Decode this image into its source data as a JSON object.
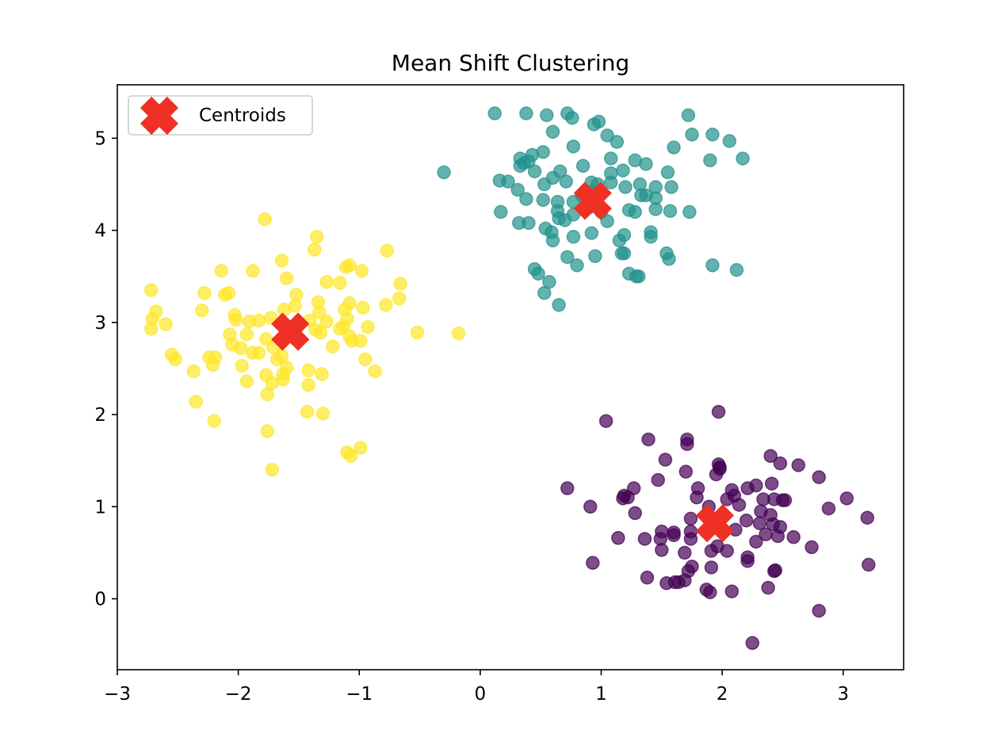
{
  "chart_data": {
    "type": "scatter",
    "title": "Mean Shift Clustering",
    "xlabel": "",
    "ylabel": "",
    "xlim": [
      -3.0,
      3.5
    ],
    "ylim": [
      -0.77,
      5.58
    ],
    "xticks": [
      -3,
      -2,
      -1,
      0,
      1,
      2,
      3
    ],
    "xtick_labels": [
      "−3",
      "−2",
      "−1",
      "0",
      "1",
      "2",
      "3"
    ],
    "yticks": [
      0,
      1,
      2,
      3,
      4,
      5
    ],
    "ytick_labels": [
      "0",
      "1",
      "2",
      "3",
      "4",
      "5"
    ],
    "grid": false,
    "legend": {
      "placement": "top-left",
      "entries": [
        "Centroids"
      ]
    },
    "colors": {
      "cluster_purple": "#440154",
      "cluster_teal": "#21918c",
      "cluster_yellow": "#fde725",
      "centroid": "#ee3124"
    },
    "clusters": [
      {
        "color_key": "cluster_teal",
        "points": [
          [
            0.12,
            5.27
          ],
          [
            0.38,
            5.27
          ],
          [
            0.55,
            5.25
          ],
          [
            0.72,
            5.27
          ],
          [
            0.76,
            5.22
          ],
          [
            0.94,
            5.15
          ],
          [
            0.98,
            5.18
          ],
          [
            1.72,
            5.25
          ],
          [
            0.6,
            5.07
          ],
          [
            1.05,
            5.03
          ],
          [
            1.13,
            4.96
          ],
          [
            1.75,
            5.04
          ],
          [
            1.92,
            5.04
          ],
          [
            2.06,
            4.97
          ],
          [
            0.77,
            4.91
          ],
          [
            1.6,
            4.9
          ],
          [
            0.52,
            4.85
          ],
          [
            0.43,
            4.82
          ],
          [
            0.33,
            4.78
          ],
          [
            0.4,
            4.75
          ],
          [
            0.85,
            4.7
          ],
          [
            1.08,
            4.78
          ],
          [
            1.28,
            4.76
          ],
          [
            1.37,
            4.72
          ],
          [
            1.9,
            4.76
          ],
          [
            2.17,
            4.78
          ],
          [
            -0.3,
            4.63
          ],
          [
            0.33,
            4.7
          ],
          [
            0.36,
            4.73
          ],
          [
            0.45,
            4.64
          ],
          [
            0.66,
            4.64
          ],
          [
            1.08,
            4.62
          ],
          [
            1.18,
            4.65
          ],
          [
            1.55,
            4.63
          ],
          [
            0.16,
            4.54
          ],
          [
            0.23,
            4.53
          ],
          [
            0.31,
            4.44
          ],
          [
            0.53,
            4.5
          ],
          [
            0.6,
            4.57
          ],
          [
            0.71,
            4.53
          ],
          [
            0.92,
            4.52
          ],
          [
            0.97,
            4.5
          ],
          [
            1.08,
            4.52
          ],
          [
            1.2,
            4.47
          ],
          [
            1.32,
            4.5
          ],
          [
            1.45,
            4.47
          ],
          [
            1.58,
            4.47
          ],
          [
            0.38,
            4.34
          ],
          [
            0.52,
            4.33
          ],
          [
            0.64,
            4.31
          ],
          [
            0.77,
            4.31
          ],
          [
            0.84,
            4.38
          ],
          [
            0.92,
            4.42
          ],
          [
            1.33,
            4.38
          ],
          [
            1.37,
            4.38
          ],
          [
            1.45,
            4.35
          ],
          [
            0.17,
            4.2
          ],
          [
            0.64,
            4.21
          ],
          [
            0.65,
            4.13
          ],
          [
            0.7,
            4.11
          ],
          [
            0.77,
            4.17
          ],
          [
            0.9,
            4.25
          ],
          [
            1.0,
            4.2
          ],
          [
            1.05,
            4.1
          ],
          [
            1.23,
            4.22
          ],
          [
            1.28,
            4.2
          ],
          [
            1.45,
            4.23
          ],
          [
            1.57,
            4.21
          ],
          [
            1.73,
            4.2
          ],
          [
            0.32,
            4.08
          ],
          [
            0.4,
            4.08
          ],
          [
            0.54,
            4.02
          ],
          [
            0.59,
            3.98
          ],
          [
            0.6,
            3.89
          ],
          [
            0.77,
            3.93
          ],
          [
            0.92,
            3.97
          ],
          [
            1.15,
            3.89
          ],
          [
            1.19,
            3.95
          ],
          [
            1.41,
            3.98
          ],
          [
            1.41,
            3.93
          ],
          [
            1.17,
            3.75
          ],
          [
            1.19,
            3.75
          ],
          [
            1.54,
            3.75
          ],
          [
            1.56,
            3.69
          ],
          [
            0.95,
            3.72
          ],
          [
            0.72,
            3.71
          ],
          [
            0.8,
            3.62
          ],
          [
            0.45,
            3.58
          ],
          [
            0.48,
            3.53
          ],
          [
            0.57,
            3.44
          ],
          [
            1.23,
            3.53
          ],
          [
            1.29,
            3.5
          ],
          [
            1.31,
            3.5
          ],
          [
            1.92,
            3.62
          ],
          [
            2.12,
            3.57
          ],
          [
            0.53,
            3.32
          ],
          [
            0.65,
            3.19
          ]
        ]
      },
      {
        "color_key": "cluster_yellow",
        "points": [
          [
            -1.78,
            4.12
          ],
          [
            -1.35,
            3.93
          ],
          [
            -1.37,
            3.79
          ],
          [
            -0.77,
            3.78
          ],
          [
            -1.64,
            3.67
          ],
          [
            -1.08,
            3.62
          ],
          [
            -1.11,
            3.6
          ],
          [
            -0.98,
            3.56
          ],
          [
            -2.14,
            3.56
          ],
          [
            -1.88,
            3.56
          ],
          [
            -1.6,
            3.48
          ],
          [
            -1.27,
            3.44
          ],
          [
            -1.16,
            3.43
          ],
          [
            -0.66,
            3.42
          ],
          [
            -2.72,
            3.35
          ],
          [
            -2.28,
            3.32
          ],
          [
            -2.11,
            3.3
          ],
          [
            -2.08,
            3.32
          ],
          [
            -1.52,
            3.3
          ],
          [
            -0.67,
            3.26
          ],
          [
            -2.68,
            3.12
          ],
          [
            -2.3,
            3.13
          ],
          [
            -1.62,
            3.14
          ],
          [
            -1.53,
            3.18
          ],
          [
            -1.34,
            3.22
          ],
          [
            -1.08,
            3.21
          ],
          [
            -0.97,
            3.16
          ],
          [
            -0.78,
            3.19
          ],
          [
            -1.12,
            3.14
          ],
          [
            -1.33,
            3.11
          ],
          [
            -2.71,
            3.04
          ],
          [
            -2.6,
            2.98
          ],
          [
            -2.03,
            3.08
          ],
          [
            -2.02,
            3.03
          ],
          [
            -1.91,
            3.01
          ],
          [
            -1.83,
            3.02
          ],
          [
            -1.73,
            3.05
          ],
          [
            -1.41,
            3.02
          ],
          [
            -1.27,
            3.01
          ],
          [
            -1.1,
            3.04
          ],
          [
            -0.93,
            2.95
          ],
          [
            -1.13,
            2.96
          ],
          [
            -1.16,
            2.93
          ],
          [
            -1.36,
            2.92
          ],
          [
            -1.32,
            2.89
          ],
          [
            -2.72,
            2.93
          ],
          [
            -2.07,
            2.87
          ],
          [
            -1.93,
            2.87
          ],
          [
            -1.77,
            2.82
          ],
          [
            -1.08,
            2.85
          ],
          [
            -1.06,
            2.8
          ],
          [
            -0.52,
            2.89
          ],
          [
            -0.18,
            2.88
          ],
          [
            -2.05,
            2.76
          ],
          [
            -1.98,
            2.72
          ],
          [
            -1.83,
            2.67
          ],
          [
            -1.71,
            2.73
          ],
          [
            -1.64,
            2.64
          ],
          [
            -1.22,
            2.74
          ],
          [
            -0.99,
            2.8
          ],
          [
            -2.55,
            2.65
          ],
          [
            -2.52,
            2.6
          ],
          [
            -2.24,
            2.62
          ],
          [
            -2.19,
            2.62
          ],
          [
            -2.21,
            2.54
          ],
          [
            -1.97,
            2.53
          ],
          [
            -1.88,
            2.67
          ],
          [
            -1.68,
            2.6
          ],
          [
            -1.6,
            2.51
          ],
          [
            -1.63,
            2.44
          ],
          [
            -0.95,
            2.6
          ],
          [
            -2.37,
            2.47
          ],
          [
            -1.42,
            2.48
          ],
          [
            -1.31,
            2.44
          ],
          [
            -0.87,
            2.47
          ],
          [
            -1.93,
            2.36
          ],
          [
            -1.77,
            2.43
          ],
          [
            -1.72,
            2.34
          ],
          [
            -1.63,
            2.38
          ],
          [
            -1.42,
            2.32
          ],
          [
            -1.76,
            2.22
          ],
          [
            -2.35,
            2.14
          ],
          [
            -1.43,
            2.03
          ],
          [
            -1.3,
            2.01
          ],
          [
            -2.2,
            1.93
          ],
          [
            -1.76,
            1.82
          ],
          [
            -1.1,
            1.59
          ],
          [
            -1.07,
            1.55
          ],
          [
            -0.99,
            1.64
          ],
          [
            -1.72,
            1.4
          ]
        ]
      },
      {
        "color_key": "cluster_purple",
        "points": [
          [
            1.97,
            2.03
          ],
          [
            1.04,
            1.93
          ],
          [
            1.39,
            1.73
          ],
          [
            1.71,
            1.73
          ],
          [
            1.71,
            1.68
          ],
          [
            1.97,
            1.46
          ],
          [
            1.98,
            1.43
          ],
          [
            1.98,
            1.41
          ],
          [
            1.53,
            1.51
          ],
          [
            2.4,
            1.55
          ],
          [
            2.48,
            1.47
          ],
          [
            2.63,
            1.45
          ],
          [
            1.95,
            1.35
          ],
          [
            1.7,
            1.38
          ],
          [
            1.47,
            1.29
          ],
          [
            2.8,
            1.32
          ],
          [
            0.72,
            1.2
          ],
          [
            1.27,
            1.2
          ],
          [
            1.19,
            1.12
          ],
          [
            1.18,
            1.09
          ],
          [
            1.22,
            1.1
          ],
          [
            1.8,
            1.2
          ],
          [
            2.08,
            1.18
          ],
          [
            2.1,
            1.12
          ],
          [
            2.21,
            1.2
          ],
          [
            2.28,
            1.23
          ],
          [
            2.41,
            1.25
          ],
          [
            1.79,
            1.1
          ],
          [
            2.04,
            1.08
          ],
          [
            2.34,
            1.08
          ],
          [
            2.5,
            1.07
          ],
          [
            2.52,
            1.07
          ],
          [
            2.43,
            1.08
          ],
          [
            3.03,
            1.09
          ],
          [
            0.91,
            1.0
          ],
          [
            1.89,
            1.0
          ],
          [
            2.14,
            1.02
          ],
          [
            2.32,
            0.95
          ],
          [
            2.4,
            0.91
          ],
          [
            2.88,
            0.98
          ],
          [
            3.2,
            0.88
          ],
          [
            1.28,
            0.93
          ],
          [
            1.74,
            0.87
          ],
          [
            1.94,
            0.86
          ],
          [
            2.2,
            0.85
          ],
          [
            2.31,
            0.82
          ],
          [
            2.48,
            0.78
          ],
          [
            2.42,
            0.81
          ],
          [
            2.11,
            0.75
          ],
          [
            1.5,
            0.73
          ],
          [
            1.6,
            0.72
          ],
          [
            1.74,
            0.73
          ],
          [
            1.74,
            0.65
          ],
          [
            1.6,
            0.69
          ],
          [
            1.49,
            0.65
          ],
          [
            1.36,
            0.65
          ],
          [
            1.14,
            0.66
          ],
          [
            2.36,
            0.7
          ],
          [
            2.46,
            0.68
          ],
          [
            2.28,
            0.62
          ],
          [
            2.59,
            0.67
          ],
          [
            1.96,
            0.57
          ],
          [
            2.04,
            0.52
          ],
          [
            1.91,
            0.52
          ],
          [
            1.69,
            0.5
          ],
          [
            1.5,
            0.53
          ],
          [
            2.74,
            0.56
          ],
          [
            2.21,
            0.45
          ],
          [
            2.21,
            0.41
          ],
          [
            0.93,
            0.39
          ],
          [
            1.75,
            0.35
          ],
          [
            1.91,
            0.34
          ],
          [
            1.72,
            0.3
          ],
          [
            2.43,
            0.3
          ],
          [
            2.44,
            0.31
          ],
          [
            3.21,
            0.37
          ],
          [
            1.38,
            0.23
          ],
          [
            1.61,
            0.18
          ],
          [
            1.64,
            0.18
          ],
          [
            1.69,
            0.2
          ],
          [
            1.54,
            0.17
          ],
          [
            1.87,
            0.1
          ],
          [
            1.9,
            0.07
          ],
          [
            2.08,
            0.08
          ],
          [
            2.38,
            0.12
          ],
          [
            2.8,
            -0.13
          ],
          [
            2.25,
            -0.48
          ]
        ]
      }
    ],
    "centroids": [
      [
        0.93,
        4.32
      ],
      [
        -1.57,
        2.9
      ],
      [
        1.94,
        0.82
      ]
    ]
  }
}
